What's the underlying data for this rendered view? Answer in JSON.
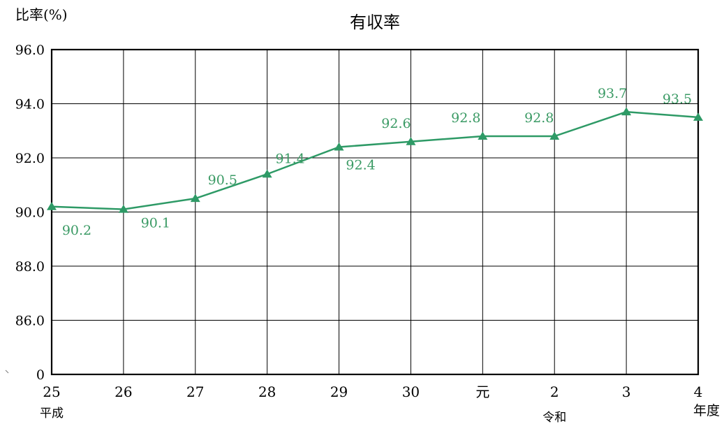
{
  "chart_data": {
    "type": "line",
    "title": "有収率",
    "ylabel": "比率(%)",
    "xlabel": "年度",
    "categories": [
      "25",
      "26",
      "27",
      "28",
      "29",
      "30",
      "元",
      "2",
      "3",
      "4"
    ],
    "era_labels": [
      {
        "text": "平成",
        "category": "25"
      },
      {
        "text": "令和",
        "category": "2"
      }
    ],
    "yticks": [
      "0",
      "86.0",
      "88.0",
      "90.0",
      "92.0",
      "94.0",
      "96.0"
    ],
    "ylim": [
      84,
      96
    ],
    "axis_break": true,
    "series": [
      {
        "values": [
          90.2,
          90.1,
          90.5,
          91.4,
          92.4,
          92.6,
          92.8,
          92.8,
          93.7,
          93.5
        ],
        "labels": [
          "90.2",
          "90.1",
          "90.5",
          "91.4",
          "92.4",
          "92.6",
          "92.8",
          "92.8",
          "93.7",
          "93.5"
        ],
        "color": "#2e9a66",
        "marker": "triangle"
      }
    ],
    "grid": true
  }
}
